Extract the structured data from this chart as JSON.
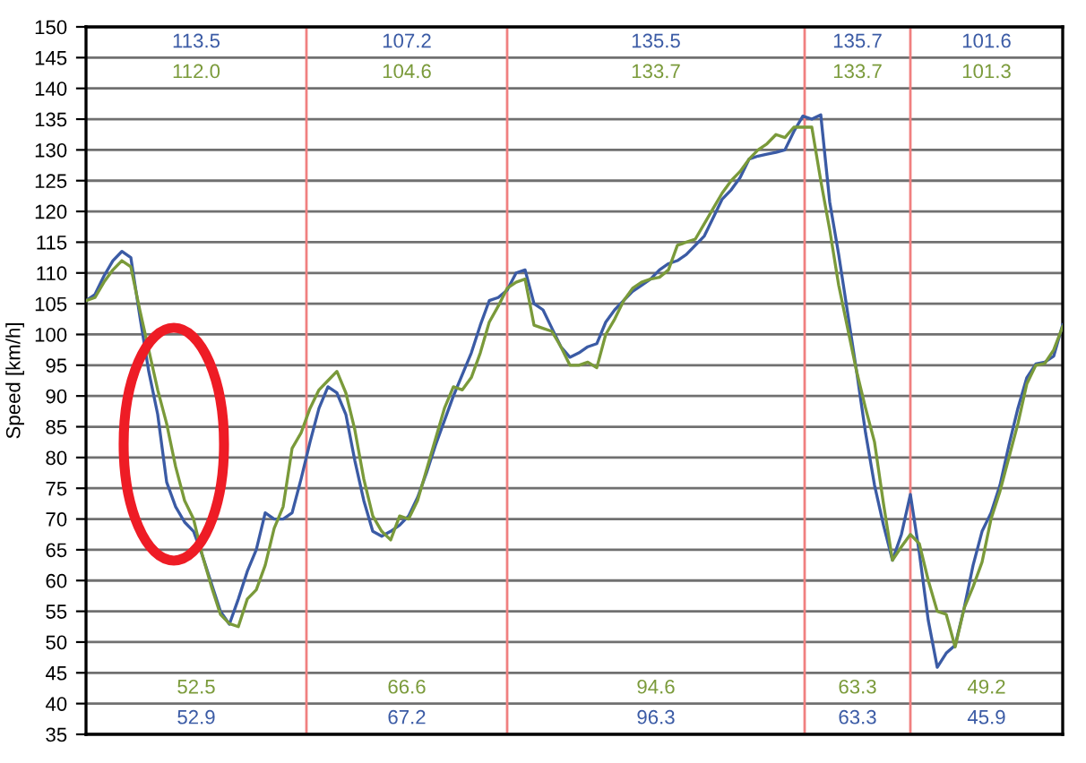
{
  "chart_data": {
    "type": "line",
    "ylabel": "Speed [km/h]",
    "categories": [
      null,
      null,
      null,
      null,
      null,
      null,
      null,
      null,
      null,
      null,
      null,
      null,
      null,
      null,
      null,
      null,
      null,
      null,
      null,
      null,
      null,
      null,
      null,
      null,
      null,
      null,
      null,
      null,
      null,
      null,
      null,
      null,
      null,
      null,
      null,
      null,
      null,
      null,
      null,
      null,
      null,
      null,
      null,
      null,
      null,
      null,
      null,
      null,
      null,
      null,
      null,
      null,
      null,
      null,
      null,
      null,
      null,
      null,
      null,
      null,
      null,
      null,
      null,
      null,
      null,
      null,
      null,
      null,
      null,
      null,
      null,
      null,
      null,
      null,
      null,
      null,
      null,
      null,
      null,
      null,
      null,
      null,
      null,
      null,
      null,
      null,
      null,
      null,
      null,
      null,
      null,
      null,
      null,
      null,
      null,
      null,
      null,
      null,
      null,
      null,
      null,
      null,
      null,
      null,
      null,
      null,
      null,
      null,
      null,
      null
    ],
    "ylim": [
      35,
      150
    ],
    "yticks": [
      35,
      40,
      45,
      50,
      55,
      60,
      65,
      70,
      75,
      80,
      85,
      90,
      95,
      100,
      105,
      110,
      115,
      120,
      125,
      130,
      135,
      140,
      145,
      150
    ],
    "grid": "y",
    "series": [
      {
        "color": "#3b5ba5",
        "values": [
          105.5,
          106.5,
          109.5,
          112,
          113.5,
          112.5,
          103,
          94,
          87,
          76,
          72,
          69.5,
          68,
          64,
          59.5,
          55,
          52.9,
          57,
          61.5,
          65,
          71,
          70,
          70,
          71,
          76.5,
          82.5,
          88,
          91.5,
          90.5,
          87,
          79.5,
          73,
          68,
          67.2,
          68,
          69,
          70.5,
          73.5,
          77.5,
          82,
          86,
          90,
          93.5,
          97,
          101.5,
          105.5,
          106,
          107.2,
          110,
          110.5,
          105,
          104,
          101,
          98,
          96.3,
          97,
          98,
          98.5,
          102,
          104,
          105.5,
          107,
          108,
          109,
          110.5,
          111.5,
          112,
          113,
          114.5,
          116,
          119,
          122,
          123.5,
          125.5,
          128.5,
          129,
          129.3,
          129.6,
          130,
          133,
          135.5,
          135,
          135.7,
          121.5,
          113,
          103.5,
          94,
          84,
          75.5,
          69,
          63.3,
          67.5,
          74,
          64.5,
          53.5,
          45.9,
          48.2,
          49.5,
          55.5,
          62.5,
          68,
          71,
          75.5,
          82,
          88,
          93,
          95.2,
          95.5,
          96.5,
          101.6
        ]
      },
      {
        "color": "#7a9a3a",
        "values": [
          105.5,
          106,
          108.5,
          110.5,
          112.0,
          111,
          104,
          97.5,
          91,
          85.5,
          78.5,
          73,
          70,
          64,
          59,
          54.5,
          53,
          52.5,
          57,
          58.5,
          62.5,
          68.5,
          72,
          81.5,
          84,
          88,
          91,
          92.5,
          94,
          90.5,
          84.5,
          76.5,
          70.5,
          68,
          66.6,
          70.5,
          70,
          73,
          78,
          83,
          88,
          91.5,
          91,
          93,
          97,
          102,
          104.6,
          107.5,
          108.5,
          109,
          101.5,
          101,
          100.5,
          98,
          95,
          95,
          95.5,
          94.6,
          100,
          102.5,
          105.5,
          107.5,
          108.5,
          109,
          109.3,
          110.5,
          114.5,
          115,
          115.5,
          118,
          120.5,
          123,
          125,
          126.5,
          128.5,
          130,
          131,
          132.5,
          132,
          133.7,
          133.7,
          133.7,
          125,
          117,
          108,
          101,
          94,
          88,
          82.5,
          72.5,
          63.3,
          65.5,
          67.5,
          66,
          60,
          55,
          54.5,
          49.2,
          55.5,
          59,
          63,
          70,
          74.5,
          80,
          85.5,
          92,
          95,
          95.3,
          97.5,
          101.3
        ]
      }
    ],
    "annotations": [
      "113.5",
      "112.0",
      "52.5",
      "52.9",
      "107.2",
      "104.6",
      "66.6",
      "67.2",
      "135.5",
      "133.7",
      "94.6",
      "96.3",
      "135.7",
      "133.7",
      "63.3",
      "63.3",
      "101.6",
      "101.3",
      "49.2",
      "45.9"
    ]
  }
}
